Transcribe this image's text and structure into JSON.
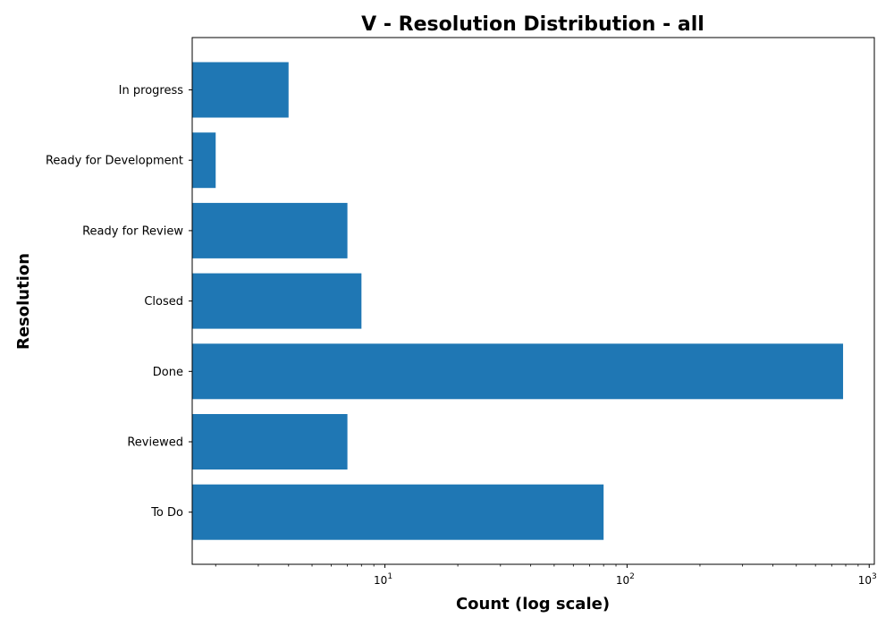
{
  "chart_data": {
    "type": "bar",
    "orientation": "horizontal",
    "title": "V - Resolution Distribution - all",
    "xlabel": "Count (log scale)",
    "ylabel": "Resolution",
    "x_scale": "log",
    "xlim": [
      1.6,
      1050
    ],
    "x_ticks": [
      {
        "base": "10",
        "exp": "1",
        "value": 10
      },
      {
        "base": "10",
        "exp": "2",
        "value": 100
      },
      {
        "base": "10",
        "exp": "3",
        "value": 1000
      }
    ],
    "categories": [
      "In progress",
      "Ready for Development",
      "Ready for Review",
      "Closed",
      "Done",
      "Reviewed",
      "To Do"
    ],
    "values": [
      4,
      2,
      7,
      8,
      780,
      7,
      80
    ],
    "bar_color": "#1f77b4",
    "grid": false,
    "legend": "none"
  }
}
